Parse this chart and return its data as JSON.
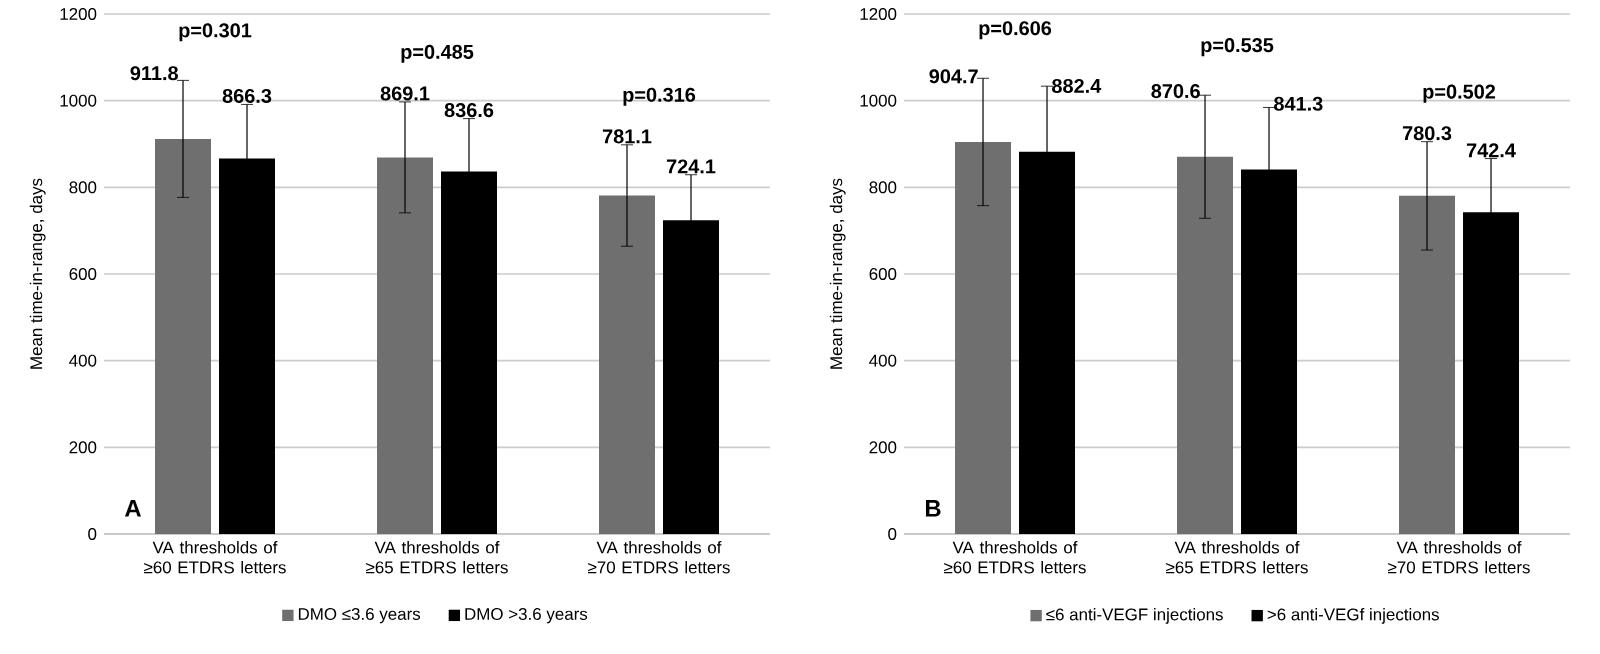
{
  "chart_data": [
    {
      "type": "bar",
      "ylabel": "Mean time-in-range, days",
      "categories": [
        "VA thresholds of ≥60 ETDRS letters",
        "VA thresholds of ≥65 ETDRS letters",
        "VA thresholds of ≥70 ETDRS letters"
      ],
      "series": [
        {
          "name": "DMO ≤3.6 years",
          "color": "#6f6f6f",
          "values": [
            911.8,
            869.1,
            781.1
          ],
          "errors": [
            135,
            128,
            117
          ]
        },
        {
          "name": "DMO >3.6 years",
          "color": "#000000",
          "values": [
            866.3,
            836.6,
            724.1
          ],
          "errors": [
            125,
            122,
            105
          ]
        }
      ],
      "ylim": [
        0,
        1200
      ],
      "yticks": [
        0,
        200,
        400,
        600,
        800,
        1000,
        1200
      ],
      "grid": "y",
      "legend": "bottom",
      "data_labels": true,
      "annotations": [
        "p=0.301",
        "p=0.485",
        "p=0.316",
        "A"
      ]
    },
    {
      "type": "bar",
      "ylabel": "Mean time-in-range, days",
      "categories": [
        "VA thresholds of ≥60 ETDRS letters",
        "VA thresholds of ≥65 ETDRS letters",
        "VA thresholds of ≥70 ETDRS letters"
      ],
      "series": [
        {
          "name": "≤6 anti-VEGF injections",
          "color": "#6f6f6f",
          "values": [
            904.7,
            870.6,
            780.3
          ],
          "errors": [
            147,
            142,
            125
          ]
        },
        {
          "name": ">6 anti-VEGf injections",
          "color": "#000000",
          "values": [
            882.4,
            841.3,
            742.4
          ],
          "errors": [
            151,
            143,
            124
          ]
        }
      ],
      "ylim": [
        0,
        1200
      ],
      "yticks": [
        0,
        200,
        400,
        600,
        800,
        1000,
        1200
      ],
      "grid": "y",
      "legend": "bottom",
      "data_labels": true,
      "annotations": [
        "p=0.606",
        "p=0.535",
        "p=0.502",
        "B"
      ]
    }
  ]
}
